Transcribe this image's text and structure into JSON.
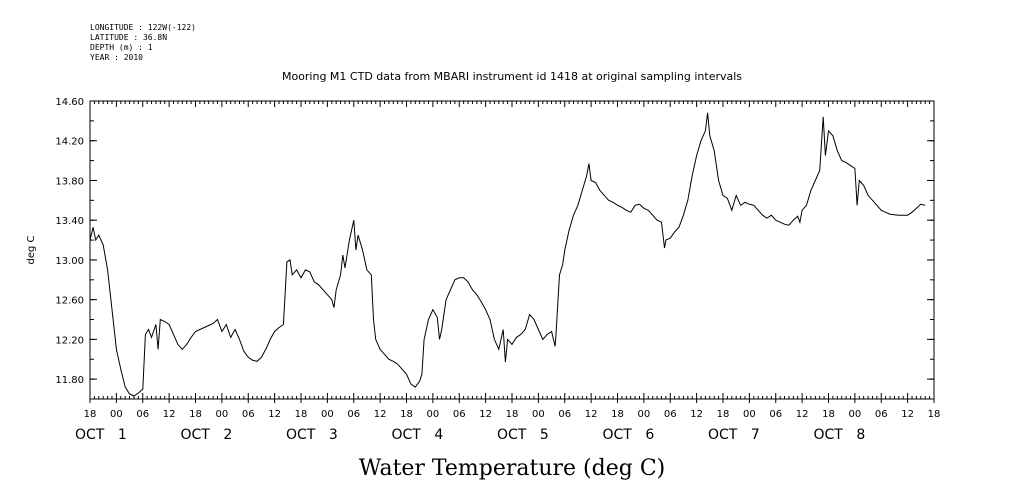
{
  "metadata": [
    "LONGITUDE : 122W(-122)",
    "LATITUDE : 36.8N",
    "DEPTH (m) : 1",
    "YEAR : 2010"
  ],
  "chart_data": {
    "type": "line",
    "title": "Mooring M1 CTD data from MBARI instrument id 1418 at original sampling intervals",
    "xlabel": "Water Temperature (deg C)",
    "ylabel": "deg C",
    "ylim": [
      11.6,
      14.6
    ],
    "yticks": [
      "11.80",
      "12.20",
      "12.60",
      "13.00",
      "13.40",
      "13.80",
      "14.20",
      "14.60"
    ],
    "x_unit": "hours since 2010-09-30 18:00",
    "xlim": [
      0,
      192
    ],
    "hour_ticks": [
      "18",
      "00",
      "06",
      "12",
      "18",
      "00",
      "06",
      "12",
      "18",
      "00",
      "06",
      "12",
      "18",
      "00",
      "06",
      "12",
      "18",
      "00",
      "06",
      "12",
      "18",
      "00",
      "06",
      "12",
      "18",
      "00",
      "06",
      "12",
      "18",
      "00",
      "06",
      "12",
      "18"
    ],
    "day_labels": [
      {
        "month": "OCT",
        "day": "1"
      },
      {
        "month": "OCT",
        "day": "2"
      },
      {
        "month": "OCT",
        "day": "3"
      },
      {
        "month": "OCT",
        "day": "4"
      },
      {
        "month": "OCT",
        "day": "5"
      },
      {
        "month": "OCT",
        "day": "6"
      },
      {
        "month": "OCT",
        "day": "7"
      },
      {
        "month": "OCT",
        "day": "8"
      }
    ],
    "series": [
      {
        "points": [
          [
            0,
            13.2
          ],
          [
            0.7,
            13.33
          ],
          [
            1.3,
            13.2
          ],
          [
            2,
            13.25
          ],
          [
            3,
            13.15
          ],
          [
            4,
            12.9
          ],
          [
            5,
            12.5
          ],
          [
            6,
            12.1
          ],
          [
            7,
            11.9
          ],
          [
            8,
            11.72
          ],
          [
            9,
            11.65
          ],
          [
            10,
            11.63
          ],
          [
            11,
            11.66
          ],
          [
            12,
            11.7
          ],
          [
            12.6,
            12.25
          ],
          [
            13.3,
            12.3
          ],
          [
            14,
            12.22
          ],
          [
            15,
            12.35
          ],
          [
            15.5,
            12.1
          ],
          [
            16,
            12.4
          ],
          [
            17,
            12.38
          ],
          [
            18,
            12.35
          ],
          [
            19,
            12.25
          ],
          [
            20,
            12.15
          ],
          [
            21,
            12.1
          ],
          [
            22,
            12.15
          ],
          [
            23,
            12.22
          ],
          [
            24,
            12.28
          ],
          [
            26,
            12.32
          ],
          [
            28,
            12.36
          ],
          [
            29,
            12.4
          ],
          [
            30,
            12.28
          ],
          [
            31,
            12.35
          ],
          [
            32,
            12.22
          ],
          [
            33,
            12.3
          ],
          [
            34,
            12.2
          ],
          [
            35,
            12.08
          ],
          [
            36,
            12.02
          ],
          [
            37,
            11.99
          ],
          [
            38,
            11.98
          ],
          [
            39,
            12.02
          ],
          [
            40,
            12.1
          ],
          [
            41,
            12.2
          ],
          [
            42,
            12.28
          ],
          [
            43,
            12.32
          ],
          [
            44,
            12.35
          ],
          [
            44.8,
            12.98
          ],
          [
            45.5,
            13.0
          ],
          [
            46,
            12.85
          ],
          [
            47,
            12.9
          ],
          [
            48,
            12.82
          ],
          [
            49,
            12.9
          ],
          [
            50,
            12.88
          ],
          [
            51,
            12.78
          ],
          [
            52,
            12.75
          ],
          [
            53,
            12.7
          ],
          [
            54,
            12.65
          ],
          [
            55,
            12.6
          ],
          [
            55.5,
            12.52
          ],
          [
            56,
            12.7
          ],
          [
            57,
            12.85
          ],
          [
            57.5,
            13.05
          ],
          [
            58,
            12.92
          ],
          [
            59,
            13.2
          ],
          [
            59.5,
            13.3
          ],
          [
            60,
            13.4
          ],
          [
            60.5,
            13.1
          ],
          [
            61,
            13.25
          ],
          [
            62,
            13.1
          ],
          [
            63,
            12.9
          ],
          [
            64,
            12.85
          ],
          [
            64.5,
            12.4
          ],
          [
            65,
            12.2
          ],
          [
            66,
            12.1
          ],
          [
            67,
            12.05
          ],
          [
            68,
            12.0
          ],
          [
            69,
            11.98
          ],
          [
            70,
            11.95
          ],
          [
            71,
            11.9
          ],
          [
            72,
            11.85
          ],
          [
            73,
            11.75
          ],
          [
            74,
            11.72
          ],
          [
            75,
            11.78
          ],
          [
            75.5,
            11.85
          ],
          [
            76,
            12.2
          ],
          [
            77,
            12.4
          ],
          [
            78,
            12.5
          ],
          [
            79,
            12.42
          ],
          [
            79.5,
            12.2
          ],
          [
            80,
            12.3
          ],
          [
            81,
            12.6
          ],
          [
            82,
            12.7
          ],
          [
            83,
            12.8
          ],
          [
            84,
            12.82
          ],
          [
            85,
            12.82
          ],
          [
            86,
            12.78
          ],
          [
            87,
            12.7
          ],
          [
            88,
            12.65
          ],
          [
            89,
            12.58
          ],
          [
            90,
            12.5
          ],
          [
            91,
            12.4
          ],
          [
            92,
            12.2
          ],
          [
            93,
            12.1
          ],
          [
            94,
            12.3
          ],
          [
            94.5,
            11.97
          ],
          [
            95,
            12.2
          ],
          [
            96,
            12.15
          ],
          [
            97,
            12.22
          ],
          [
            98,
            12.25
          ],
          [
            99,
            12.3
          ],
          [
            100,
            12.45
          ],
          [
            101,
            12.4
          ],
          [
            102,
            12.3
          ],
          [
            103,
            12.2
          ],
          [
            104,
            12.25
          ],
          [
            105,
            12.28
          ],
          [
            105.8,
            12.13
          ],
          [
            106,
            12.25
          ],
          [
            106.8,
            12.85
          ],
          [
            107.5,
            12.95
          ],
          [
            108,
            13.1
          ],
          [
            109,
            13.3
          ],
          [
            110,
            13.45
          ],
          [
            111,
            13.55
          ],
          [
            112,
            13.7
          ],
          [
            113,
            13.85
          ],
          [
            113.5,
            13.97
          ],
          [
            114,
            13.8
          ],
          [
            115,
            13.78
          ],
          [
            116,
            13.7
          ],
          [
            117,
            13.65
          ],
          [
            118,
            13.6
          ],
          [
            119,
            13.58
          ],
          [
            120,
            13.55
          ],
          [
            121,
            13.53
          ],
          [
            122,
            13.5
          ],
          [
            123,
            13.48
          ],
          [
            124,
            13.55
          ],
          [
            125,
            13.56
          ],
          [
            126,
            13.52
          ],
          [
            127,
            13.5
          ],
          [
            128,
            13.45
          ],
          [
            129,
            13.4
          ],
          [
            130,
            13.38
          ],
          [
            130.7,
            13.12
          ],
          [
            131,
            13.2
          ],
          [
            132,
            13.22
          ],
          [
            133,
            13.28
          ],
          [
            134,
            13.33
          ],
          [
            135,
            13.45
          ],
          [
            136,
            13.6
          ],
          [
            137,
            13.85
          ],
          [
            138,
            14.05
          ],
          [
            139,
            14.2
          ],
          [
            140,
            14.3
          ],
          [
            140.5,
            14.48
          ],
          [
            141,
            14.25
          ],
          [
            142,
            14.1
          ],
          [
            143,
            13.8
          ],
          [
            144,
            13.65
          ],
          [
            145,
            13.62
          ],
          [
            146,
            13.5
          ],
          [
            147,
            13.65
          ],
          [
            148,
            13.55
          ],
          [
            149,
            13.58
          ],
          [
            150,
            13.56
          ],
          [
            151,
            13.55
          ],
          [
            152,
            13.5
          ],
          [
            153,
            13.45
          ],
          [
            154,
            13.42
          ],
          [
            155,
            13.45
          ],
          [
            156,
            13.4
          ],
          [
            157,
            13.38
          ],
          [
            158,
            13.36
          ],
          [
            159,
            13.35
          ],
          [
            160,
            13.4
          ],
          [
            161,
            13.44
          ],
          [
            161.5,
            13.38
          ],
          [
            162,
            13.5
          ],
          [
            163,
            13.55
          ],
          [
            164,
            13.7
          ],
          [
            165,
            13.8
          ],
          [
            166,
            13.9
          ],
          [
            166.8,
            14.44
          ],
          [
            167.3,
            14.05
          ],
          [
            168,
            14.3
          ],
          [
            169,
            14.25
          ],
          [
            170,
            14.1
          ],
          [
            171,
            14.0
          ],
          [
            172,
            13.98
          ],
          [
            173,
            13.95
          ],
          [
            174,
            13.92
          ],
          [
            174.5,
            13.55
          ],
          [
            175,
            13.8
          ],
          [
            176,
            13.75
          ],
          [
            177,
            13.65
          ],
          [
            178,
            13.6
          ],
          [
            179,
            13.55
          ],
          [
            180,
            13.5
          ],
          [
            181,
            13.48
          ],
          [
            182,
            13.46
          ],
          [
            184,
            13.45
          ],
          [
            186,
            13.45
          ],
          [
            187,
            13.48
          ],
          [
            188,
            13.52
          ],
          [
            189,
            13.56
          ],
          [
            190,
            13.55
          ]
        ]
      }
    ]
  }
}
